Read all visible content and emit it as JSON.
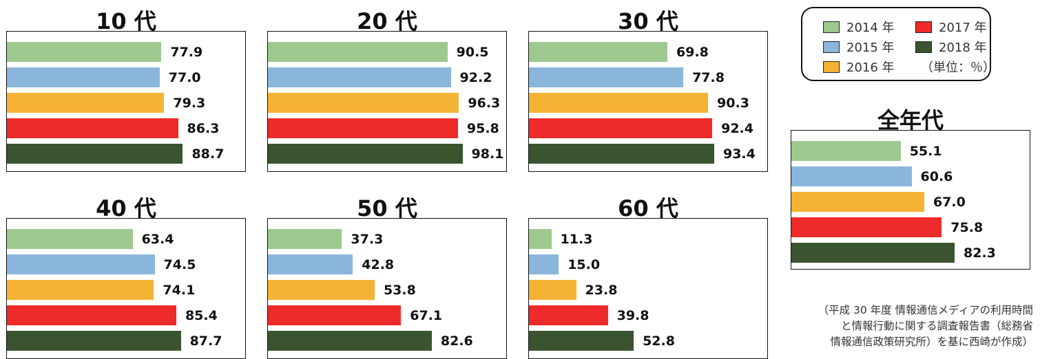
{
  "legend": {
    "items": [
      {
        "label": "2014 年",
        "color": "#9dc98f"
      },
      {
        "label": "2015 年",
        "color": "#8ab6dc"
      },
      {
        "label": "2016 年",
        "color": "#f4b334"
      },
      {
        "label": "2017 年",
        "color": "#ee2a2a"
      },
      {
        "label": "2018 年",
        "color": "#3a5430"
      }
    ],
    "unit": "（単位：％）"
  },
  "source_lines": [
    "（平成 30 年度 情報通信メディアの利用時間",
    "と情報行動に関する調査報告書（総務省",
    "情報通信政策研究所）を基に西崎が作成）"
  ],
  "chart_data": [
    {
      "type": "bar",
      "orientation": "horizontal",
      "title": "10 代",
      "categories": [
        "2014 年",
        "2015 年",
        "2016 年",
        "2017 年",
        "2018 年"
      ],
      "values": [
        77.9,
        77.0,
        79.3,
        86.3,
        88.7
      ],
      "xlim": [
        0,
        121
      ],
      "unit": "%"
    },
    {
      "type": "bar",
      "orientation": "horizontal",
      "title": "20 代",
      "categories": [
        "2014 年",
        "2015 年",
        "2016 年",
        "2017 年",
        "2018 年"
      ],
      "values": [
        90.5,
        92.2,
        96.3,
        95.8,
        98.1
      ],
      "xlim": [
        0,
        121
      ],
      "unit": "%"
    },
    {
      "type": "bar",
      "orientation": "horizontal",
      "title": "30 代",
      "categories": [
        "2014 年",
        "2015 年",
        "2016 年",
        "2017 年",
        "2018 年"
      ],
      "values": [
        69.8,
        77.8,
        90.3,
        92.4,
        93.4
      ],
      "xlim": [
        0,
        121
      ],
      "unit": "%"
    },
    {
      "type": "bar",
      "orientation": "horizontal",
      "title": "40 代",
      "categories": [
        "2014 年",
        "2015 年",
        "2016 年",
        "2017 年",
        "2018 年"
      ],
      "values": [
        63.4,
        74.5,
        74.1,
        85.4,
        87.7
      ],
      "xlim": [
        0,
        121
      ],
      "unit": "%"
    },
    {
      "type": "bar",
      "orientation": "horizontal",
      "title": "50 代",
      "categories": [
        "2014 年",
        "2015 年",
        "2016 年",
        "2017 年",
        "2018 年"
      ],
      "values": [
        37.3,
        42.8,
        53.8,
        67.1,
        82.6
      ],
      "xlim": [
        0,
        121
      ],
      "unit": "%"
    },
    {
      "type": "bar",
      "orientation": "horizontal",
      "title": "60 代",
      "categories": [
        "2014 年",
        "2015 年",
        "2016 年",
        "2017 年",
        "2018 年"
      ],
      "values": [
        11.3,
        15.0,
        23.8,
        39.8,
        52.8
      ],
      "xlim": [
        0,
        121
      ],
      "unit": "%"
    },
    {
      "type": "bar",
      "orientation": "horizontal",
      "title": "全年代",
      "categories": [
        "2014 年",
        "2015 年",
        "2016 年",
        "2017 年",
        "2018 年"
      ],
      "values": [
        55.1,
        60.6,
        67.0,
        75.8,
        82.3
      ],
      "xlim": [
        0,
        121
      ],
      "unit": "%"
    }
  ]
}
